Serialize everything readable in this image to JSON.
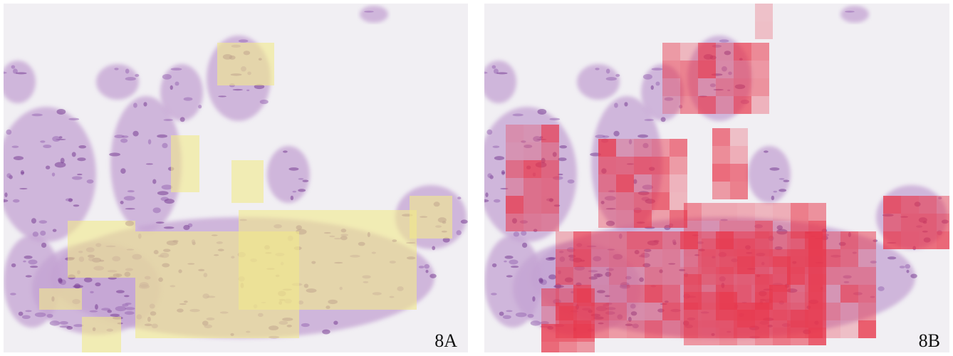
{
  "panels": [
    {
      "label": "8A"
    },
    {
      "label": "8B"
    }
  ]
}
